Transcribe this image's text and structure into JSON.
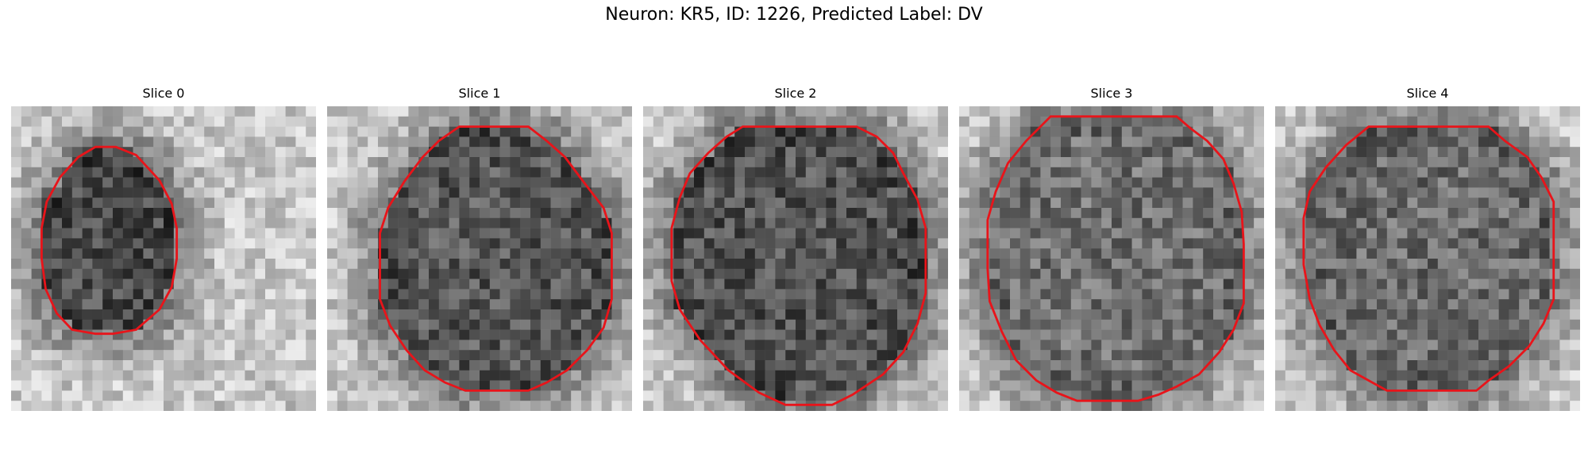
{
  "figure": {
    "title": "Neuron: KR5, ID: 1226, Predicted Label: DV",
    "contour_color": "#e8141a",
    "colormap": "grayscale"
  },
  "slices": [
    {
      "title": "Slice 0"
    },
    {
      "title": "Slice 1"
    },
    {
      "title": "Slice 2"
    },
    {
      "title": "Slice 3"
    },
    {
      "title": "Slice 4"
    }
  ]
}
